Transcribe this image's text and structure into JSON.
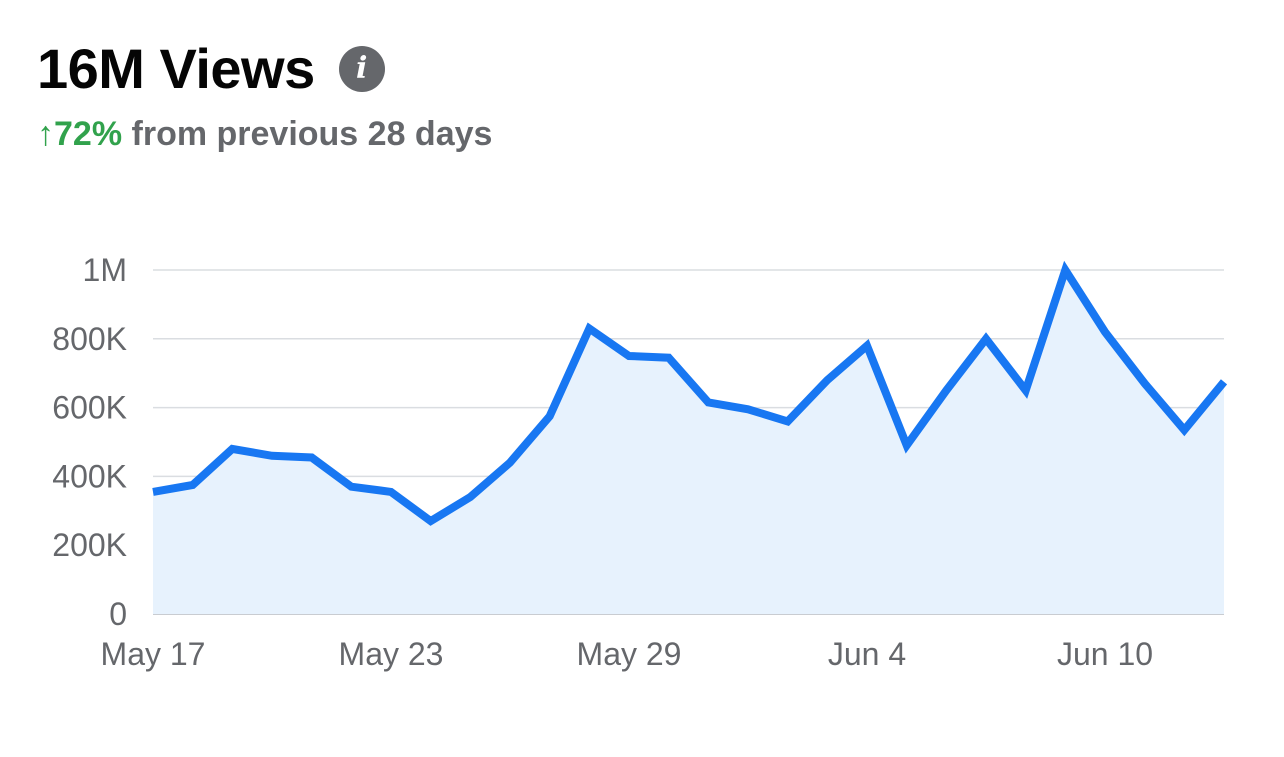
{
  "header": {
    "title": "16M Views",
    "info_icon": "info-icon",
    "change_arrow": "↑",
    "change_value": "72%",
    "change_suffix": " from previous 28 days",
    "change_color": "#31a24c"
  },
  "chart_data": {
    "type": "area",
    "title": "",
    "xlabel": "",
    "ylabel": "",
    "x": [
      "May 17",
      "May 18",
      "May 19",
      "May 20",
      "May 21",
      "May 22",
      "May 23",
      "May 24",
      "May 25",
      "May 26",
      "May 27",
      "May 28",
      "May 29",
      "May 30",
      "May 31",
      "Jun 1",
      "Jun 2",
      "Jun 3",
      "Jun 4",
      "Jun 5",
      "Jun 6",
      "Jun 7",
      "Jun 8",
      "Jun 9",
      "Jun 10",
      "Jun 11",
      "Jun 12",
      "Jun 13"
    ],
    "series": [
      {
        "values": [
          355000,
          375000,
          480000,
          460000,
          455000,
          370000,
          355000,
          270000,
          340000,
          440000,
          575000,
          830000,
          750000,
          745000,
          615000,
          595000,
          560000,
          680000,
          780000,
          490000,
          650000,
          800000,
          650000,
          1000000,
          820000,
          670000,
          535000,
          675000
        ],
        "color": "#1877f2",
        "fill": "#e7f2fd"
      }
    ],
    "ylim": [
      0,
      1000000
    ],
    "y_ticks": [
      {
        "value": 0,
        "label": "0"
      },
      {
        "value": 200000,
        "label": "200K"
      },
      {
        "value": 400000,
        "label": "400K"
      },
      {
        "value": 600000,
        "label": "600K"
      },
      {
        "value": 800000,
        "label": "800K"
      },
      {
        "value": 1000000,
        "label": "1M"
      }
    ],
    "x_tick_labels": [
      "May 17",
      "May 23",
      "May 29",
      "Jun 4",
      "Jun 10"
    ],
    "grid": true,
    "legend": "none"
  }
}
